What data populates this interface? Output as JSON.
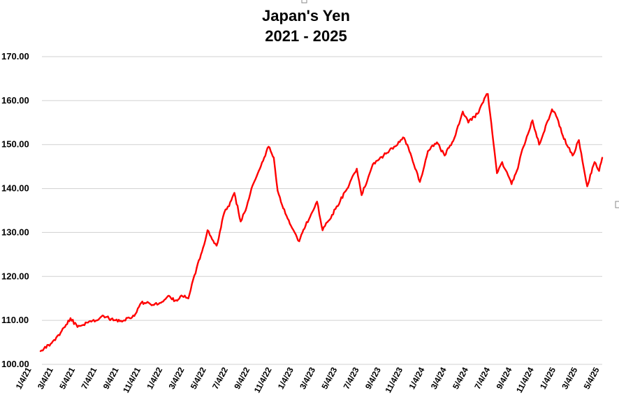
{
  "chart_data": {
    "type": "line",
    "title": [
      "Japan's Yen",
      "2021 - 2025"
    ],
    "xlabel": "",
    "ylabel": "",
    "ylim": [
      100,
      170
    ],
    "yticks": [
      "100.00",
      "110.00",
      "120.00",
      "130.00",
      "140.00",
      "150.00",
      "160.00",
      "170.00"
    ],
    "xticks": [
      "1/4/21",
      "3/4/21",
      "5/4/21",
      "7/4/21",
      "9/4/21",
      "11/4/21",
      "1/4/22",
      "3/4/22",
      "5/4/22",
      "7/4/22",
      "9/4/22",
      "11/4/22",
      "1/4/23",
      "3/4/23",
      "5/4/23",
      "7/4/23",
      "9/4/23",
      "11/4/23",
      "1/4/24",
      "3/4/24",
      "5/4/24",
      "7/4/24",
      "9/4/24",
      "11/4/24",
      "1/4/25",
      "3/4/25",
      "5/4/25"
    ],
    "grid": true,
    "line_color": "#ff0000",
    "series": [
      {
        "x": [
          "2021-01-04",
          "2021-02-15",
          "2021-03-15",
          "2021-03-31",
          "2021-04-20",
          "2021-05-20",
          "2021-06-15",
          "2021-07-04",
          "2021-08-01",
          "2021-09-01",
          "2021-09-30",
          "2021-10-20",
          "2021-11-04",
          "2021-11-25",
          "2021-12-15",
          "2022-01-04",
          "2022-01-25",
          "2022-02-15",
          "2022-03-04",
          "2022-03-28",
          "2022-04-15",
          "2022-04-28",
          "2022-05-24",
          "2022-06-15",
          "2022-06-29",
          "2022-07-14",
          "2022-08-01",
          "2022-08-15",
          "2022-09-01",
          "2022-09-22",
          "2022-10-20",
          "2022-11-04",
          "2022-11-15",
          "2022-12-01",
          "2022-12-20",
          "2023-01-16",
          "2023-02-03",
          "2023-03-08",
          "2023-03-24",
          "2023-04-20",
          "2023-05-30",
          "2023-06-30",
          "2023-07-14",
          "2023-08-15",
          "2023-09-15",
          "2023-10-15",
          "2023-11-13",
          "2023-12-01",
          "2023-12-28",
          "2024-01-20",
          "2024-02-15",
          "2024-03-08",
          "2024-04-05",
          "2024-04-29",
          "2024-05-15",
          "2024-06-10",
          "2024-06-30",
          "2024-07-10",
          "2024-08-05",
          "2024-08-20",
          "2024-09-16",
          "2024-10-01",
          "2024-10-20",
          "2024-11-15",
          "2024-12-04",
          "2025-01-10",
          "2025-01-25",
          "2025-02-10",
          "2025-03-10",
          "2025-03-28",
          "2025-04-21",
          "2025-05-12",
          "2025-05-25",
          "2025-06-03"
        ],
        "values": [
          103.0,
          105.5,
          108.5,
          110.5,
          108.5,
          109.5,
          110.0,
          111.0,
          110.0,
          110.0,
          111.0,
          114.0,
          114.0,
          113.5,
          114.0,
          115.5,
          114.5,
          115.5,
          115.0,
          122.0,
          126.5,
          130.5,
          127.0,
          134.5,
          136.0,
          139.0,
          132.5,
          135.0,
          140.0,
          144.0,
          149.5,
          147.0,
          139.5,
          135.5,
          132.0,
          128.0,
          131.5,
          137.0,
          130.5,
          134.0,
          139.5,
          144.5,
          138.5,
          145.5,
          147.5,
          149.5,
          151.5,
          148.0,
          141.5,
          148.5,
          150.5,
          147.5,
          151.5,
          157.5,
          155.0,
          157.0,
          160.5,
          161.5,
          143.5,
          146.0,
          141.0,
          144.0,
          149.5,
          155.5,
          150.0,
          158.0,
          156.0,
          152.0,
          147.5,
          151.0,
          140.5,
          146.0,
          144.0,
          147.0
        ]
      }
    ]
  }
}
